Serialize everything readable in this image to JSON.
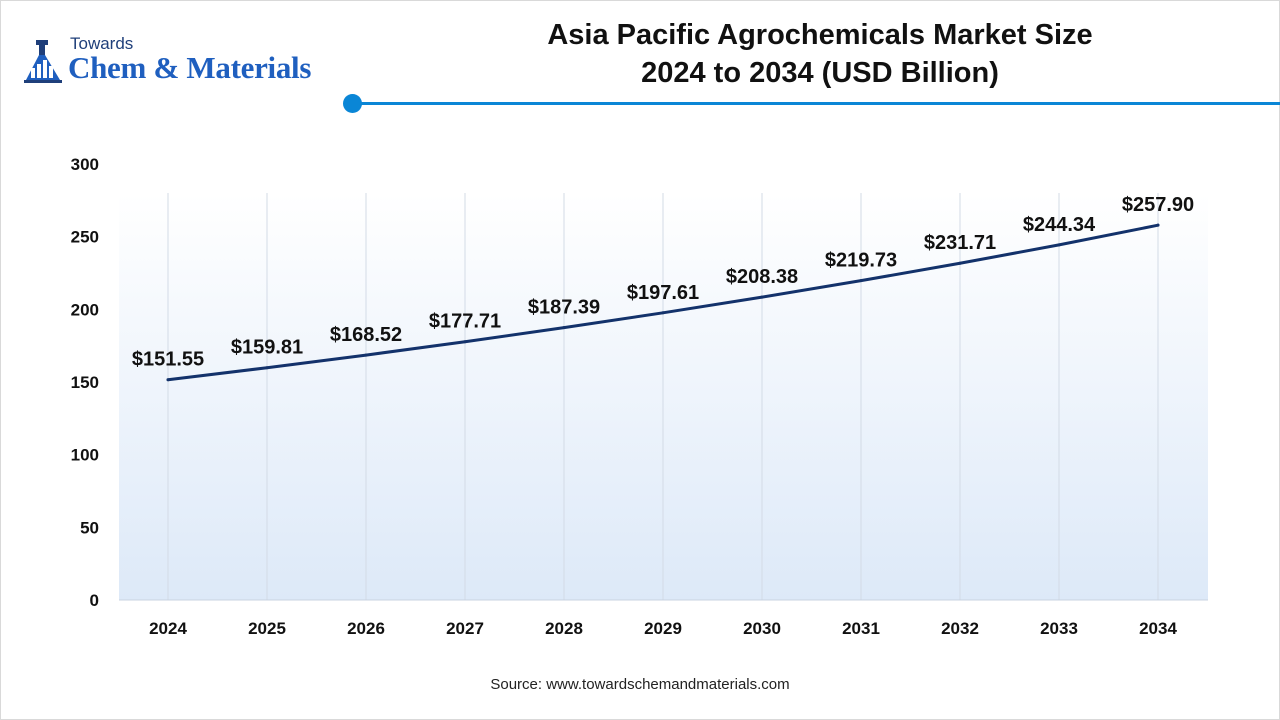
{
  "brand": {
    "towards": "Towards",
    "name": "Chem & Materials"
  },
  "title_line1": "Asia Pacific Agrochemicals Market Size",
  "title_line2": "2024 to 2034 (USD Billion)",
  "source": "Source: www.towardschemandmaterials.com",
  "colors": {
    "accent": "#0a86d6",
    "line": "#13326b",
    "plot_bg_top": "#ffffff",
    "plot_bg_bottom": "#dde9f8"
  },
  "chart_data": {
    "type": "line",
    "title": "Asia Pacific Agrochemicals Market Size 2024 to 2034 (USD Billion)",
    "categories": [
      "2024",
      "2025",
      "2026",
      "2027",
      "2028",
      "2029",
      "2030",
      "2031",
      "2032",
      "2033",
      "2034"
    ],
    "series": [
      {
        "values": [
          151.55,
          159.81,
          168.52,
          177.71,
          187.39,
          197.61,
          208.38,
          219.73,
          231.71,
          244.34,
          257.9
        ],
        "labels": [
          "$151.55",
          "$159.81",
          "$168.52",
          "$177.71",
          "$187.39",
          "$197.61",
          "$208.38",
          "$219.73",
          "$231.71",
          "$244.34",
          "$257.90"
        ]
      }
    ],
    "yticks": [
      "0",
      "50",
      "100",
      "150",
      "200",
      "250",
      "300"
    ],
    "ylim": [
      0,
      300
    ],
    "xlabel": "",
    "ylabel": "",
    "grid": "vertical",
    "legend": "none"
  }
}
